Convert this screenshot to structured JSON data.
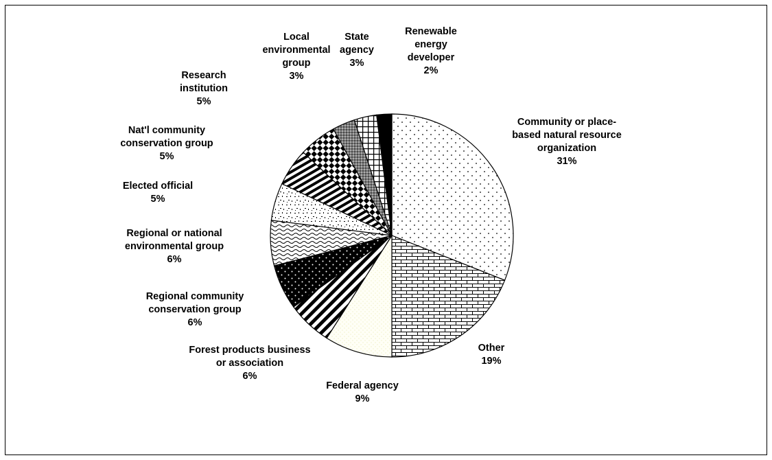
{
  "chart_data": {
    "type": "pie",
    "title": "",
    "start_angle_deg": 0,
    "direction": "clockwise",
    "slices": [
      {
        "name": "Community or place-based natural resource organization",
        "label_lines": [
          "Community or place-",
          "based natural resource",
          "organization"
        ],
        "pct_text": "31%",
        "value": 31,
        "pattern": "dots-sparse"
      },
      {
        "name": "Other",
        "label_lines": [
          "Other"
        ],
        "pct_text": "19%",
        "value": 19,
        "pattern": "brick"
      },
      {
        "name": "Federal agency",
        "label_lines": [
          "Federal agency"
        ],
        "pct_text": "9%",
        "value": 9,
        "pattern": "light-dots"
      },
      {
        "name": "Forest products business or association",
        "label_lines": [
          "Forest products business",
          "or association"
        ],
        "pct_text": "6%",
        "value": 6,
        "pattern": "diag-wide"
      },
      {
        "name": "Regional community conservation group",
        "label_lines": [
          "Regional community",
          "conservation group"
        ],
        "pct_text": "6%",
        "value": 6,
        "pattern": "dark-dots"
      },
      {
        "name": "Regional or national environmental group",
        "label_lines": [
          "Regional or national",
          "environmental group"
        ],
        "pct_text": "6%",
        "value": 6,
        "pattern": "wave"
      },
      {
        "name": "Elected official",
        "label_lines": [
          "Elected official"
        ],
        "pct_text": "5%",
        "value": 5,
        "pattern": "confetti"
      },
      {
        "name": "Nat'l community conservation group",
        "label_lines": [
          "Nat'l community",
          "conservation group"
        ],
        "pct_text": "5%",
        "value": 5,
        "pattern": "diag-thin"
      },
      {
        "name": "Research institution",
        "label_lines": [
          "Research",
          "institution"
        ],
        "pct_text": "5%",
        "value": 5,
        "pattern": "checker"
      },
      {
        "name": "Local environmental group",
        "label_lines": [
          "Local",
          "environmental",
          "group"
        ],
        "pct_text": "3%",
        "value": 3,
        "pattern": "gray-dots"
      },
      {
        "name": "State agency",
        "label_lines": [
          "State",
          "agency"
        ],
        "pct_text": "3%",
        "value": 3,
        "pattern": "grid"
      },
      {
        "name": "Renewable energy developer",
        "label_lines": [
          "Renewable",
          "energy",
          "developer"
        ],
        "pct_text": "2%",
        "value": 2,
        "pattern": "solid-black"
      }
    ]
  }
}
